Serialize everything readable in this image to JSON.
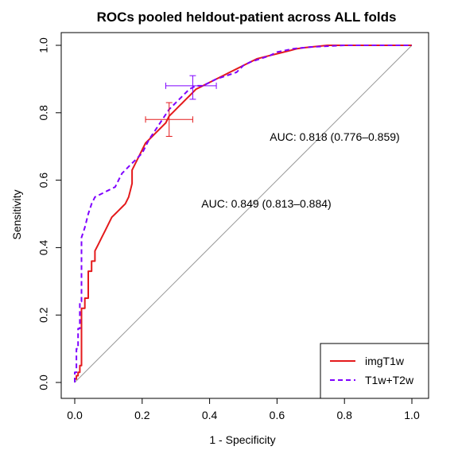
{
  "chart_data": {
    "type": "line",
    "title": "ROCs pooled heldout-patient across ALL folds",
    "xlabel": "1 - Specificity",
    "ylabel": "Sensitivity",
    "xlim": [
      0,
      1
    ],
    "ylim": [
      0,
      1
    ],
    "x_ticks": [
      "0.0",
      "0.2",
      "0.4",
      "0.6",
      "0.8",
      "1.0"
    ],
    "y_ticks": [
      "0.0",
      "0.2",
      "0.4",
      "0.6",
      "0.8",
      "1.0"
    ],
    "grid": false,
    "diagonal_reference": true,
    "legend_position": "bottom-right",
    "series": [
      {
        "name": "imgT1w",
        "color": "#e41a1c",
        "line_style": "solid",
        "auc_label": "AUC: 0.818 (0.776–0.859)",
        "operating_point": {
          "x": 0.28,
          "y": 0.78,
          "x_err": [
            0.21,
            0.35
          ],
          "y_err": [
            0.73,
            0.83
          ]
        },
        "x": [
          0.0,
          0.0,
          0.005,
          0.005,
          0.01,
          0.01,
          0.015,
          0.015,
          0.02,
          0.02,
          0.03,
          0.03,
          0.04,
          0.04,
          0.05,
          0.05,
          0.06,
          0.06,
          0.07,
          0.08,
          0.09,
          0.1,
          0.11,
          0.12,
          0.13,
          0.14,
          0.15,
          0.16,
          0.165,
          0.17,
          0.17,
          0.18,
          0.19,
          0.2,
          0.21,
          0.22,
          0.23,
          0.24,
          0.25,
          0.26,
          0.27,
          0.28,
          0.29,
          0.3,
          0.31,
          0.32,
          0.33,
          0.34,
          0.36,
          0.38,
          0.4,
          0.42,
          0.44,
          0.46,
          0.48,
          0.5,
          0.52,
          0.54,
          0.56,
          0.58,
          0.6,
          0.62,
          0.64,
          0.66,
          0.68,
          0.7,
          0.72,
          0.75,
          0.8,
          0.9,
          1.0
        ],
        "y": [
          0.0,
          0.01,
          0.01,
          0.02,
          0.02,
          0.03,
          0.03,
          0.05,
          0.05,
          0.22,
          0.22,
          0.25,
          0.25,
          0.33,
          0.33,
          0.36,
          0.36,
          0.39,
          0.41,
          0.43,
          0.45,
          0.47,
          0.49,
          0.5,
          0.51,
          0.52,
          0.53,
          0.55,
          0.57,
          0.59,
          0.63,
          0.65,
          0.67,
          0.69,
          0.71,
          0.72,
          0.73,
          0.74,
          0.75,
          0.76,
          0.77,
          0.79,
          0.8,
          0.81,
          0.82,
          0.83,
          0.84,
          0.85,
          0.87,
          0.88,
          0.89,
          0.9,
          0.91,
          0.92,
          0.93,
          0.94,
          0.95,
          0.96,
          0.965,
          0.97,
          0.975,
          0.98,
          0.985,
          0.99,
          0.993,
          0.995,
          0.997,
          1.0,
          1.0,
          1.0,
          1.0
        ]
      },
      {
        "name": "T1w+T2w",
        "color": "#7f00ff",
        "line_style": "dashed",
        "auc_label": "AUC: 0.849 (0.813–0.884)",
        "operating_point": {
          "x": 0.35,
          "y": 0.88,
          "x_err": [
            0.27,
            0.42
          ],
          "y_err": [
            0.84,
            0.91
          ]
        },
        "x": [
          0.0,
          0.0,
          0.005,
          0.005,
          0.01,
          0.01,
          0.015,
          0.015,
          0.02,
          0.02,
          0.03,
          0.04,
          0.05,
          0.06,
          0.08,
          0.1,
          0.12,
          0.13,
          0.14,
          0.15,
          0.16,
          0.18,
          0.2,
          0.22,
          0.24,
          0.26,
          0.28,
          0.3,
          0.32,
          0.34,
          0.36,
          0.38,
          0.4,
          0.42,
          0.45,
          0.48,
          0.5,
          0.52,
          0.55,
          0.58,
          0.6,
          0.65,
          0.7,
          0.8,
          0.9,
          1.0
        ],
        "y": [
          0.0,
          0.03,
          0.03,
          0.1,
          0.1,
          0.16,
          0.16,
          0.24,
          0.24,
          0.43,
          0.46,
          0.5,
          0.53,
          0.55,
          0.56,
          0.57,
          0.58,
          0.6,
          0.62,
          0.63,
          0.64,
          0.66,
          0.68,
          0.72,
          0.75,
          0.78,
          0.81,
          0.83,
          0.85,
          0.87,
          0.88,
          0.88,
          0.89,
          0.9,
          0.91,
          0.92,
          0.94,
          0.95,
          0.96,
          0.97,
          0.98,
          0.99,
          0.995,
          1.0,
          1.0,
          1.0
        ]
      }
    ]
  }
}
